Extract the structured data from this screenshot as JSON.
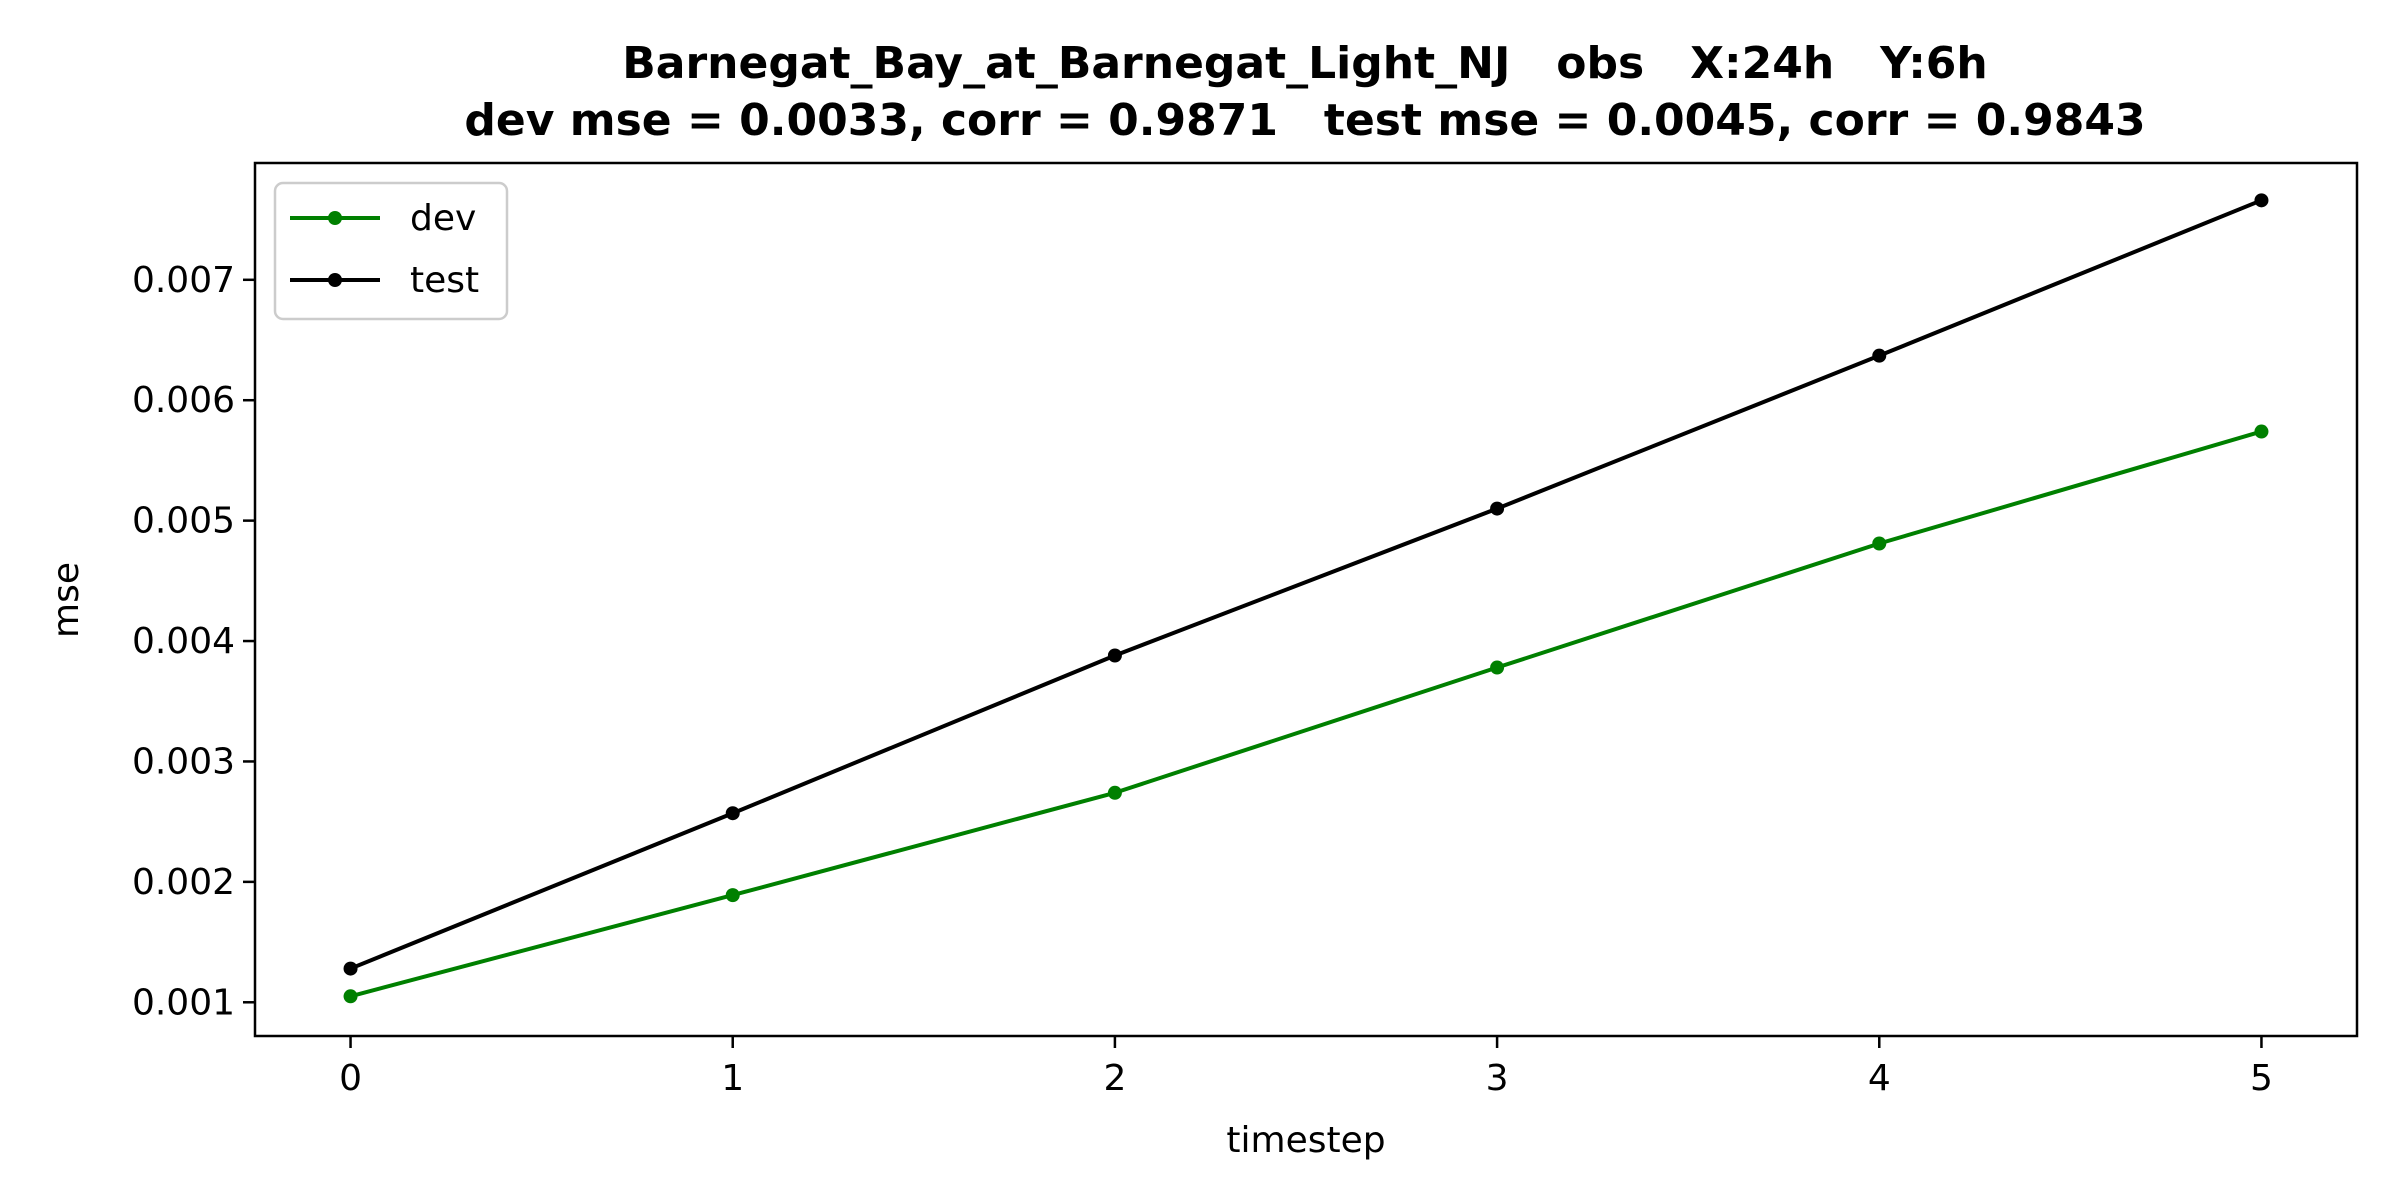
{
  "chart_data": {
    "type": "line",
    "title_line1": "Barnegat_Bay_at_Barnegat_Light_NJ   obs   X:24h   Y:6h",
    "title_line2": "dev mse = 0.0033, corr = 0.9871   test mse = 0.0045, corr = 0.9843",
    "xlabel": "timestep",
    "ylabel": "mse",
    "x": [
      0,
      1,
      2,
      3,
      4,
      5
    ],
    "xlim": [
      -0.25,
      5.25
    ],
    "ylim": [
      0.00072,
      0.00797
    ],
    "xticks": [
      0,
      1,
      2,
      3,
      4,
      5
    ],
    "xtick_labels": [
      "0",
      "1",
      "2",
      "3",
      "4",
      "5"
    ],
    "yticks": [
      0.001,
      0.002,
      0.003,
      0.004,
      0.005,
      0.006,
      0.007
    ],
    "ytick_labels": [
      "0.001",
      "0.002",
      "0.003",
      "0.004",
      "0.005",
      "0.006",
      "0.007"
    ],
    "grid": false,
    "legend_position": "top-left",
    "series": [
      {
        "name": "dev",
        "color": "#008000",
        "values": [
          0.00105,
          0.00189,
          0.00274,
          0.00378,
          0.00481,
          0.00574
        ]
      },
      {
        "name": "test",
        "color": "#000000",
        "values": [
          0.00128,
          0.00257,
          0.00388,
          0.0051,
          0.00637,
          0.00766
        ]
      }
    ]
  }
}
